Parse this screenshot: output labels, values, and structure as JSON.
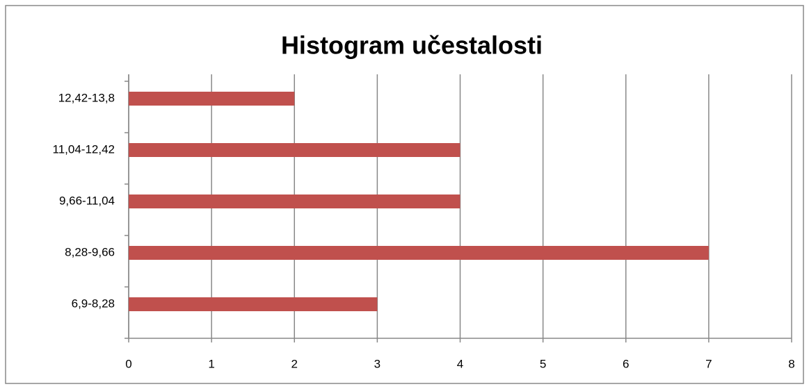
{
  "chart_data": {
    "type": "bar",
    "orientation": "horizontal",
    "title": "Histogram učestalosti",
    "categories": [
      "6,9-8,28",
      "8,28-9,66",
      "9,66-11,04",
      "11,04-12,42",
      "12,42-13,8"
    ],
    "values": [
      3,
      7,
      4,
      4,
      2
    ],
    "color": "#c0504d",
    "xlim": [
      0,
      8
    ],
    "xticks": [
      0,
      1,
      2,
      3,
      4,
      5,
      6,
      7,
      8
    ],
    "grid": true
  }
}
